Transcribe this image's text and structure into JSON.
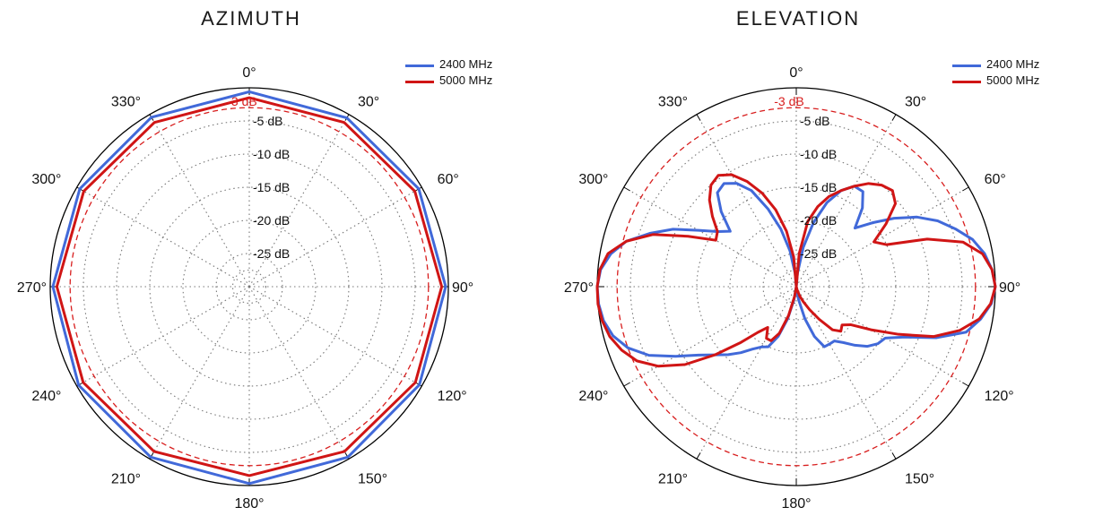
{
  "chart_data": [
    {
      "type": "polar-line",
      "title": "AZIMUTH",
      "theta_tick_labels": [
        "0°",
        "30°",
        "60°",
        "90°",
        "120°",
        "150°",
        "180°",
        "210°",
        "240°",
        "270°",
        "300°",
        "330°"
      ],
      "r_tick_labels": [
        "-5 dB",
        "-10 dB",
        "-15 dB",
        "-20 dB",
        "-25 dB"
      ],
      "r_ticks": [
        -5,
        -10,
        -15,
        -20,
        -25
      ],
      "r_range_db": [
        -30,
        0
      ],
      "reference_circle": {
        "value": -3,
        "label": "-3 dB",
        "color": "#d81e1e",
        "style": "dashed"
      },
      "grid": true,
      "legend_position": "top-right",
      "series": [
        {
          "name": "2400 MHz",
          "color": "#4169d9",
          "theta_deg": [
            0,
            30,
            60,
            90,
            120,
            150,
            180,
            210,
            240,
            270,
            300,
            330
          ],
          "r_db": [
            -0.6,
            -0.6,
            -0.5,
            -0.4,
            -0.4,
            -0.3,
            -0.3,
            -0.3,
            -0.3,
            -0.4,
            -0.5,
            -0.5
          ]
        },
        {
          "name": "5000 MHz",
          "color": "#d01515",
          "theta_deg": [
            0,
            30,
            60,
            90,
            120,
            150,
            180,
            210,
            240,
            270,
            300,
            330
          ],
          "r_db": [
            -1.5,
            -1.4,
            -1.2,
            -1.0,
            -1.1,
            -1.3,
            -1.5,
            -1.3,
            -1.1,
            -1.0,
            -1.2,
            -1.4
          ]
        }
      ]
    },
    {
      "type": "polar-line",
      "title": "ELEVATION",
      "theta_tick_labels": [
        "0°",
        "30°",
        "60°",
        "90°",
        "120°",
        "150°",
        "180°",
        "210°",
        "240°",
        "270°",
        "300°",
        "330°"
      ],
      "r_tick_labels": [
        "-5 dB",
        "-10 dB",
        "-15 dB",
        "-20 dB",
        "-25 dB"
      ],
      "r_ticks": [
        -5,
        -10,
        -15,
        -20,
        -25
      ],
      "r_range_db": [
        -30,
        0
      ],
      "reference_circle": {
        "value": -3,
        "label": "-3 dB",
        "color": "#d81e1e",
        "style": "dashed"
      },
      "grid": true,
      "legend_position": "top-right",
      "series": [
        {
          "name": "2400 MHz",
          "color": "#4169d9",
          "theta_deg": [
            0,
            5,
            10,
            15,
            20,
            25,
            30,
            35,
            40,
            45,
            50,
            55,
            60,
            65,
            70,
            75,
            80,
            85,
            90,
            95,
            100,
            105,
            110,
            115,
            120,
            125,
            130,
            135,
            140,
            145,
            150,
            155,
            160,
            165,
            170,
            175,
            180,
            185,
            190,
            195,
            200,
            205,
            210,
            215,
            220,
            225,
            230,
            235,
            240,
            245,
            250,
            255,
            260,
            265,
            270,
            275,
            280,
            285,
            290,
            295,
            300,
            305,
            310,
            315,
            320,
            325,
            330,
            335,
            340,
            345,
            350,
            355
          ],
          "r_db": [
            -30,
            -28.0,
            -24.0,
            -20.0,
            -16.5,
            -14.0,
            -12.5,
            -12.5,
            -14.5,
            -17.5,
            -15.0,
            -12.0,
            -9.0,
            -6.5,
            -4.5,
            -2.5,
            -1.2,
            -0.4,
            0,
            -0.5,
            -1.8,
            -3.5,
            -7.5,
            -12.0,
            -14.5,
            -15.0,
            -16.0,
            -17.5,
            -19.0,
            -20.0,
            -20.0,
            -20.0,
            -22.0,
            -25.0,
            -28.0,
            -30.0,
            -30,
            -30.0,
            -28.0,
            -25.0,
            -22.0,
            -20.0,
            -19.5,
            -18.5,
            -17.0,
            -15.5,
            -14.0,
            -12.0,
            -9.0,
            -5.5,
            -3.0,
            -1.4,
            -0.5,
            -0.1,
            0,
            -0.4,
            -1.6,
            -3.5,
            -6.5,
            -9.5,
            -13.0,
            -15.5,
            -17.0,
            -14.0,
            -11.5,
            -11.0,
            -12.0,
            -14.0,
            -17.5,
            -21.0,
            -24.5,
            -28.0
          ]
        },
        {
          "name": "5000 MHz",
          "color": "#d01515",
          "theta_deg": [
            0,
            5,
            10,
            15,
            20,
            25,
            30,
            35,
            40,
            45,
            50,
            55,
            60,
            65,
            70,
            75,
            80,
            85,
            90,
            95,
            100,
            105,
            110,
            115,
            120,
            125,
            130,
            135,
            140,
            145,
            150,
            155,
            160,
            165,
            170,
            175,
            180,
            185,
            190,
            195,
            200,
            205,
            210,
            215,
            220,
            225,
            230,
            235,
            240,
            245,
            250,
            255,
            260,
            265,
            270,
            275,
            280,
            285,
            290,
            295,
            300,
            305,
            310,
            315,
            320,
            325,
            330,
            335,
            340,
            345,
            350,
            355
          ],
          "r_db": [
            -30,
            -25.0,
            -20.0,
            -17.5,
            -15.5,
            -14.0,
            -12.5,
            -11.0,
            -10.0,
            -9.5,
            -10.5,
            -13.5,
            -16.5,
            -15.0,
            -9.0,
            -4.0,
            -1.5,
            -0.4,
            0,
            -0.6,
            -2.0,
            -4.5,
            -8.0,
            -13.0,
            -17.0,
            -20.0,
            -21.0,
            -20.5,
            -21.5,
            -24.0,
            -26.0,
            -27.5,
            -28.5,
            -29.5,
            -30.0,
            -30.0,
            -30,
            -30.0,
            -28.5,
            -25.5,
            -22.5,
            -21.0,
            -21.0,
            -22.5,
            -21.0,
            -18.0,
            -14.0,
            -9.5,
            -6.0,
            -3.5,
            -2.0,
            -0.9,
            -0.3,
            0,
            0,
            -0.3,
            -1.2,
            -3.5,
            -7.0,
            -12.0,
            -16.0,
            -15.5,
            -13.5,
            -11.5,
            -10.0,
            -9.5,
            -10.5,
            -12.5,
            -15.0,
            -18.0,
            -21.5,
            -25.5
          ]
        }
      ]
    }
  ]
}
